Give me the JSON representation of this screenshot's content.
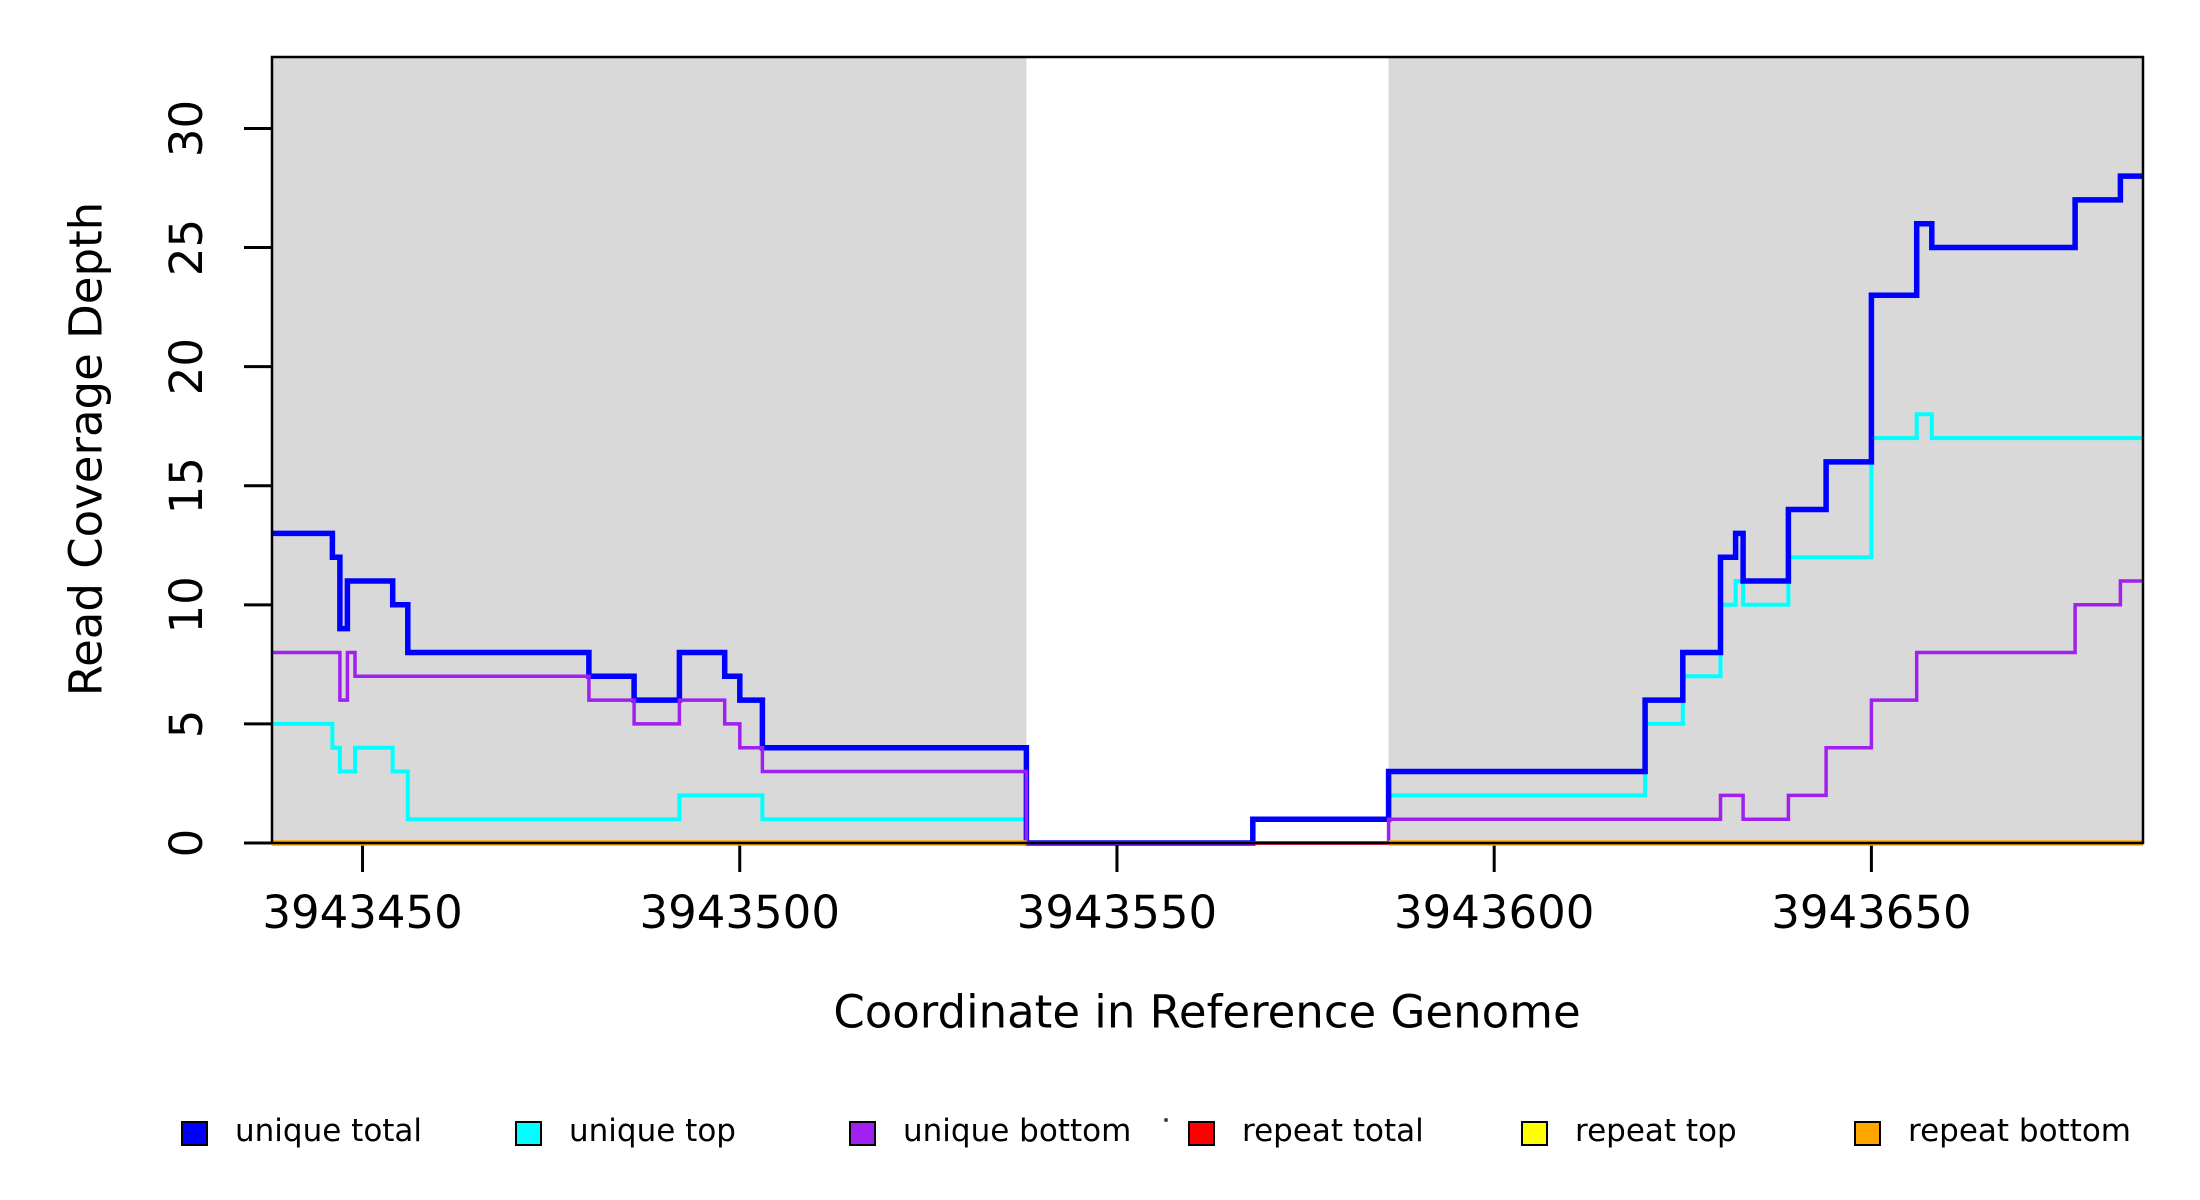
{
  "chart_data": {
    "type": "line",
    "subtype": "step-post",
    "title": "",
    "xlabel": "Coordinate in Reference Genome",
    "ylabel": "Read Coverage Depth",
    "xlim": [
      3943438,
      3943686
    ],
    "ylim": [
      0,
      33
    ],
    "x_ticks": [
      3943450,
      3943500,
      3943550,
      3943600,
      3943650
    ],
    "y_ticks": [
      0,
      5,
      10,
      15,
      20,
      25,
      30
    ],
    "grid": false,
    "legend_position": "bottom",
    "background_color": "#ffffff",
    "shaded_regions": [
      {
        "name": "covered-region-left",
        "x0": 3943438,
        "x1": 3943538,
        "color": "#D9D9D9"
      },
      {
        "name": "covered-region-right",
        "x0": 3943586,
        "x1": 3943686,
        "color": "#D9D9D9"
      }
    ],
    "draw_order": [
      "unique top",
      "unique total",
      "unique bottom",
      "repeat total",
      "repeat top",
      "repeat bottom"
    ],
    "series": [
      {
        "name": "unique total",
        "color": "#0000FF",
        "line_width": 5.5,
        "segments": [
          {
            "steps": [
              [
                3943438,
                13
              ],
              [
                3943446,
                12
              ],
              [
                3943447,
                9
              ],
              [
                3943448,
                11
              ],
              [
                3943454,
                10
              ],
              [
                3943456,
                8
              ],
              [
                3943480,
                7
              ],
              [
                3943486,
                6
              ],
              [
                3943492,
                8
              ],
              [
                3943498,
                7
              ],
              [
                3943500,
                6
              ],
              [
                3943503,
                4
              ],
              [
                3943538,
                0
              ],
              [
                3943568,
                1
              ],
              [
                3943586,
                3
              ],
              [
                3943620,
                6
              ],
              [
                3943625,
                8
              ],
              [
                3943630,
                12
              ],
              [
                3943632,
                13
              ],
              [
                3943633,
                11
              ],
              [
                3943639,
                14
              ],
              [
                3943644,
                16
              ],
              [
                3943650,
                23
              ],
              [
                3943656,
                26
              ],
              [
                3943658,
                25
              ],
              [
                3943677,
                27
              ],
              [
                3943683,
                28
              ]
            ],
            "end": 3943686
          }
        ]
      },
      {
        "name": "unique top",
        "color": "#00FFFF",
        "line_width": 4,
        "segments": [
          {
            "steps": [
              [
                3943438,
                5
              ],
              [
                3943446,
                4
              ],
              [
                3943447,
                3
              ],
              [
                3943449,
                4
              ],
              [
                3943454,
                3
              ],
              [
                3943456,
                1
              ],
              [
                3943492,
                2
              ],
              [
                3943503,
                1
              ],
              [
                3943538,
                0
              ],
              [
                3943568,
                1
              ],
              [
                3943586,
                2
              ],
              [
                3943620,
                5
              ],
              [
                3943625,
                7
              ],
              [
                3943630,
                10
              ],
              [
                3943632,
                11
              ],
              [
                3943633,
                10
              ],
              [
                3943639,
                12
              ],
              [
                3943650,
                17
              ],
              [
                3943656,
                18
              ],
              [
                3943658,
                17
              ]
            ],
            "end": 3943686
          }
        ]
      },
      {
        "name": "unique bottom",
        "color": "#A020F0",
        "line_width": 3.5,
        "segments": [
          {
            "steps": [
              [
                3943438,
                8
              ],
              [
                3943447,
                6
              ],
              [
                3943448,
                8
              ],
              [
                3943449,
                7
              ],
              [
                3943480,
                6
              ],
              [
                3943486,
                5
              ],
              [
                3943492,
                6
              ],
              [
                3943498,
                5
              ],
              [
                3943500,
                4
              ],
              [
                3943503,
                3
              ],
              [
                3943538,
                0
              ],
              [
                3943586,
                1
              ],
              [
                3943630,
                2
              ],
              [
                3943633,
                1
              ],
              [
                3943639,
                2
              ],
              [
                3943644,
                4
              ],
              [
                3943650,
                6
              ],
              [
                3943656,
                8
              ],
              [
                3943677,
                10
              ],
              [
                3943683,
                11
              ]
            ],
            "end": 3943686
          }
        ]
      },
      {
        "name": "repeat total",
        "color": "#FF0000",
        "line_width": 3.5,
        "segments": [
          {
            "steps": [
              [
                3943568,
                0
              ]
            ],
            "end": 3943586
          }
        ]
      },
      {
        "name": "repeat top",
        "color": "#FFFF00",
        "line_width": 3.5,
        "segments": [
          {
            "steps": [
              [
                3943438,
                0
              ]
            ],
            "end": 3943538
          },
          {
            "steps": [
              [
                3943586,
                0
              ]
            ],
            "end": 3943686
          }
        ]
      },
      {
        "name": "repeat bottom",
        "color": "#FFA500",
        "line_width": 5.5,
        "segments": [
          {
            "steps": [
              [
                3943438,
                0
              ]
            ],
            "end": 3943538
          },
          {
            "steps": [
              [
                3943586,
                0
              ]
            ],
            "end": 3943686
          }
        ]
      }
    ]
  },
  "legend": {
    "items": [
      {
        "label": "unique total",
        "color": "#0000FF"
      },
      {
        "label": "unique top",
        "color": "#00FFFF"
      },
      {
        "label": "unique bottom",
        "color": "#A020F0"
      },
      {
        "label": "repeat total",
        "color": "#FF0000"
      },
      {
        "label": "repeat top",
        "color": "#FFFF00"
      },
      {
        "label": "repeat bottom",
        "color": "#FFA500"
      }
    ],
    "stray_mark": "·"
  }
}
